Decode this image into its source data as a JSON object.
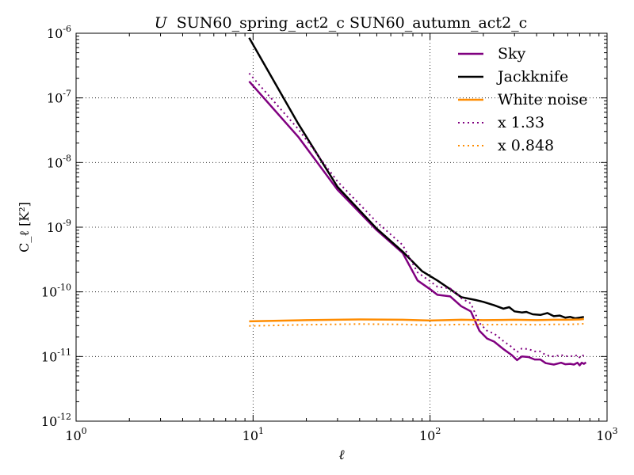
{
  "chart_data": {
    "type": "line",
    "title_prefix": "U",
    "title": "SUN60_spring_act2_c SUN60_autumn_act2_c",
    "xlabel": "ℓ",
    "ylabel": "C_ℓ [K²]",
    "x_scale": "log",
    "y_scale": "log",
    "xlim": [
      1,
      1000
    ],
    "ylim": [
      1e-12,
      1e-06
    ],
    "grid": true,
    "legend_placement": "top-right",
    "x_ticks": [
      {
        "value": 1,
        "base": "10",
        "exp": "0"
      },
      {
        "value": 10,
        "base": "10",
        "exp": "1"
      },
      {
        "value": 100,
        "base": "10",
        "exp": "2"
      },
      {
        "value": 1000,
        "base": "10",
        "exp": "3"
      }
    ],
    "y_ticks": [
      {
        "value": 1e-12,
        "base": "10",
        "exp": "-12"
      },
      {
        "value": 1e-11,
        "base": "10",
        "exp": "-11"
      },
      {
        "value": 1e-10,
        "base": "10",
        "exp": "-10"
      },
      {
        "value": 1e-09,
        "base": "10",
        "exp": "-9"
      },
      {
        "value": 1e-08,
        "base": "10",
        "exp": "-8"
      },
      {
        "value": 1e-07,
        "base": "10",
        "exp": "-7"
      },
      {
        "value": 1e-06,
        "base": "10",
        "exp": "-6"
      }
    ],
    "series": [
      {
        "name": "Sky",
        "color": "#800080",
        "style": "solid",
        "points": [
          [
            9.5,
            1.8e-07
          ],
          [
            18,
            2.5e-08
          ],
          [
            30,
            3.8e-09
          ],
          [
            50,
            9e-10
          ],
          [
            70,
            4e-10
          ],
          [
            85,
            1.5e-10
          ],
          [
            100,
            1.1e-10
          ],
          [
            110,
            9e-11
          ],
          [
            130,
            8.5e-11
          ],
          [
            150,
            6e-11
          ],
          [
            170,
            5e-11
          ],
          [
            190,
            2.5e-11
          ],
          [
            210,
            1.9e-11
          ],
          [
            230,
            1.7e-11
          ],
          [
            260,
            1.3e-11
          ],
          [
            290,
            1.05e-11
          ],
          [
            310,
            8.8e-12
          ],
          [
            330,
            1e-11
          ],
          [
            360,
            9.8e-12
          ],
          [
            390,
            9e-12
          ],
          [
            420,
            9e-12
          ],
          [
            450,
            7.9e-12
          ],
          [
            500,
            7.5e-12
          ],
          [
            550,
            8e-12
          ],
          [
            580,
            7.6e-12
          ],
          [
            620,
            7.7e-12
          ],
          [
            650,
            7.5e-12
          ],
          [
            680,
            8e-12
          ],
          [
            700,
            7.3e-12
          ],
          [
            720,
            8e-12
          ],
          [
            740,
            7.7e-12
          ],
          [
            760,
            8.1e-12
          ]
        ]
      },
      {
        "name": "Jackknife",
        "color": "#000000",
        "style": "solid",
        "points": [
          [
            9.5,
            8.5e-07
          ],
          [
            18,
            4e-08
          ],
          [
            30,
            4.2e-09
          ],
          [
            50,
            9.5e-10
          ],
          [
            70,
            4.2e-10
          ],
          [
            90,
            2.1e-10
          ],
          [
            110,
            1.5e-10
          ],
          [
            130,
            1.1e-10
          ],
          [
            150,
            8.3e-11
          ],
          [
            180,
            7.5e-11
          ],
          [
            200,
            7e-11
          ],
          [
            230,
            6.2e-11
          ],
          [
            260,
            5.5e-11
          ],
          [
            280,
            5.8e-11
          ],
          [
            300,
            5e-11
          ],
          [
            330,
            4.8e-11
          ],
          [
            350,
            4.9e-11
          ],
          [
            380,
            4.5e-11
          ],
          [
            420,
            4.4e-11
          ],
          [
            460,
            4.7e-11
          ],
          [
            500,
            4.2e-11
          ],
          [
            540,
            4.3e-11
          ],
          [
            580,
            4e-11
          ],
          [
            620,
            4.1e-11
          ],
          [
            660,
            3.9e-11
          ],
          [
            700,
            4e-11
          ],
          [
            740,
            4.1e-11
          ]
        ]
      },
      {
        "name": "White noise",
        "color": "#ff8c00",
        "style": "solid",
        "points": [
          [
            9.5,
            3.5e-11
          ],
          [
            20,
            3.65e-11
          ],
          [
            40,
            3.75e-11
          ],
          [
            70,
            3.7e-11
          ],
          [
            100,
            3.6e-11
          ],
          [
            150,
            3.7e-11
          ],
          [
            200,
            3.65e-11
          ],
          [
            300,
            3.7e-11
          ],
          [
            400,
            3.65e-11
          ],
          [
            500,
            3.7e-11
          ],
          [
            600,
            3.7e-11
          ],
          [
            700,
            3.75e-11
          ],
          [
            740,
            3.8e-11
          ]
        ]
      },
      {
        "name": "x 1.33",
        "color": "#800080",
        "style": "dotted",
        "points": [
          [
            9.5,
            2.4e-07
          ],
          [
            18,
            3.3e-08
          ],
          [
            30,
            5.1e-09
          ],
          [
            50,
            1.2e-09
          ],
          [
            70,
            5.3e-10
          ],
          [
            85,
            2e-10
          ],
          [
            100,
            1.46e-10
          ],
          [
            110,
            1.2e-10
          ],
          [
            130,
            1.13e-10
          ],
          [
            150,
            8e-11
          ],
          [
            170,
            6.6e-11
          ],
          [
            190,
            3.3e-11
          ],
          [
            210,
            2.5e-11
          ],
          [
            230,
            2.26e-11
          ],
          [
            260,
            1.73e-11
          ],
          [
            290,
            1.4e-11
          ],
          [
            310,
            1.17e-11
          ],
          [
            330,
            1.33e-11
          ],
          [
            360,
            1.3e-11
          ],
          [
            390,
            1.2e-11
          ],
          [
            420,
            1.2e-11
          ],
          [
            450,
            1.05e-11
          ],
          [
            500,
            1e-11
          ],
          [
            550,
            1.06e-11
          ],
          [
            580,
            1.01e-11
          ],
          [
            620,
            1.02e-11
          ],
          [
            650,
            1e-11
          ],
          [
            680,
            1.06e-11
          ],
          [
            700,
            9.7e-12
          ],
          [
            720,
            1.06e-11
          ],
          [
            740,
            1.02e-11
          ],
          [
            760,
            1.08e-11
          ]
        ]
      },
      {
        "name": "x 0.848",
        "color": "#ff8c00",
        "style": "dotted",
        "points": [
          [
            9.5,
            2.97e-11
          ],
          [
            20,
            3.1e-11
          ],
          [
            40,
            3.18e-11
          ],
          [
            70,
            3.14e-11
          ],
          [
            100,
            3.05e-11
          ],
          [
            150,
            3.14e-11
          ],
          [
            200,
            3.1e-11
          ],
          [
            300,
            3.14e-11
          ],
          [
            400,
            3.1e-11
          ],
          [
            500,
            3.14e-11
          ],
          [
            600,
            3.14e-11
          ],
          [
            700,
            3.18e-11
          ],
          [
            740,
            3.22e-11
          ]
        ]
      }
    ]
  }
}
